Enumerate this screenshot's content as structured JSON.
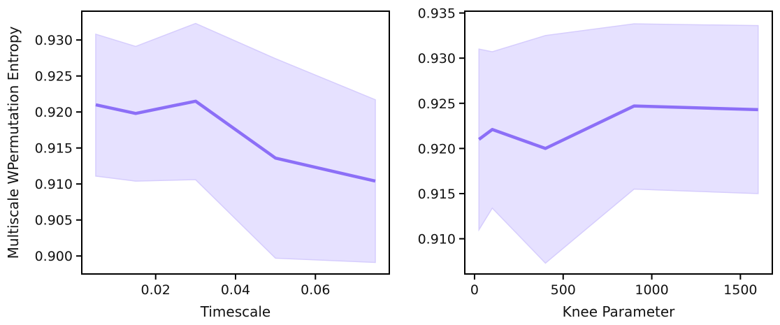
{
  "colors": {
    "line": "#8c6ff7",
    "band_fill": "#e6e1ff",
    "band_edge": "#d6cdfd",
    "axis": "#000000"
  },
  "chart_data": [
    {
      "type": "line",
      "xlabel": "Timescale",
      "ylabel": "Multiscale WPermutation Entropy",
      "xlim": [
        0.0015,
        0.0785
      ],
      "ylim": [
        0.8975,
        0.934
      ],
      "xticks": [
        0.02,
        0.04,
        0.06
      ],
      "xtick_labels": [
        "0.02",
        "0.04",
        "0.06"
      ],
      "yticks": [
        0.9,
        0.905,
        0.91,
        0.915,
        0.92,
        0.925,
        0.93
      ],
      "ytick_labels": [
        "0.900",
        "0.905",
        "0.910",
        "0.915",
        "0.920",
        "0.925",
        "0.930"
      ],
      "grid": false,
      "x": [
        0.005,
        0.015,
        0.03,
        0.05,
        0.075
      ],
      "series": [
        {
          "values": [
            0.921,
            0.9198,
            0.9215,
            0.9136,
            0.9104
          ],
          "band_upper": [
            0.9308,
            0.9291,
            0.9323,
            0.9274,
            0.9217
          ],
          "band_lower": [
            0.9111,
            0.9104,
            0.9106,
            0.8997,
            0.8991
          ]
        }
      ]
    },
    {
      "type": "line",
      "xlabel": "Knee Parameter",
      "ylabel": "",
      "xlim": [
        -55,
        1680
      ],
      "ylim": [
        0.9061,
        0.9352
      ],
      "xticks": [
        0,
        500,
        1000,
        1500
      ],
      "xtick_labels": [
        "0",
        "500",
        "1000",
        "1500"
      ],
      "yticks": [
        0.91,
        0.915,
        0.92,
        0.925,
        0.93,
        0.935
      ],
      "ytick_labels": [
        "0.910",
        "0.915",
        "0.920",
        "0.925",
        "0.930",
        "0.935"
      ],
      "grid": false,
      "x": [
        25,
        100,
        400,
        900,
        1600
      ],
      "series": [
        {
          "values": [
            0.921,
            0.9221,
            0.92,
            0.9247,
            0.9243
          ],
          "band_upper": [
            0.931,
            0.9307,
            0.9325,
            0.9338,
            0.9336
          ],
          "band_lower": [
            0.911,
            0.9134,
            0.9073,
            0.9155,
            0.915
          ]
        }
      ]
    }
  ]
}
